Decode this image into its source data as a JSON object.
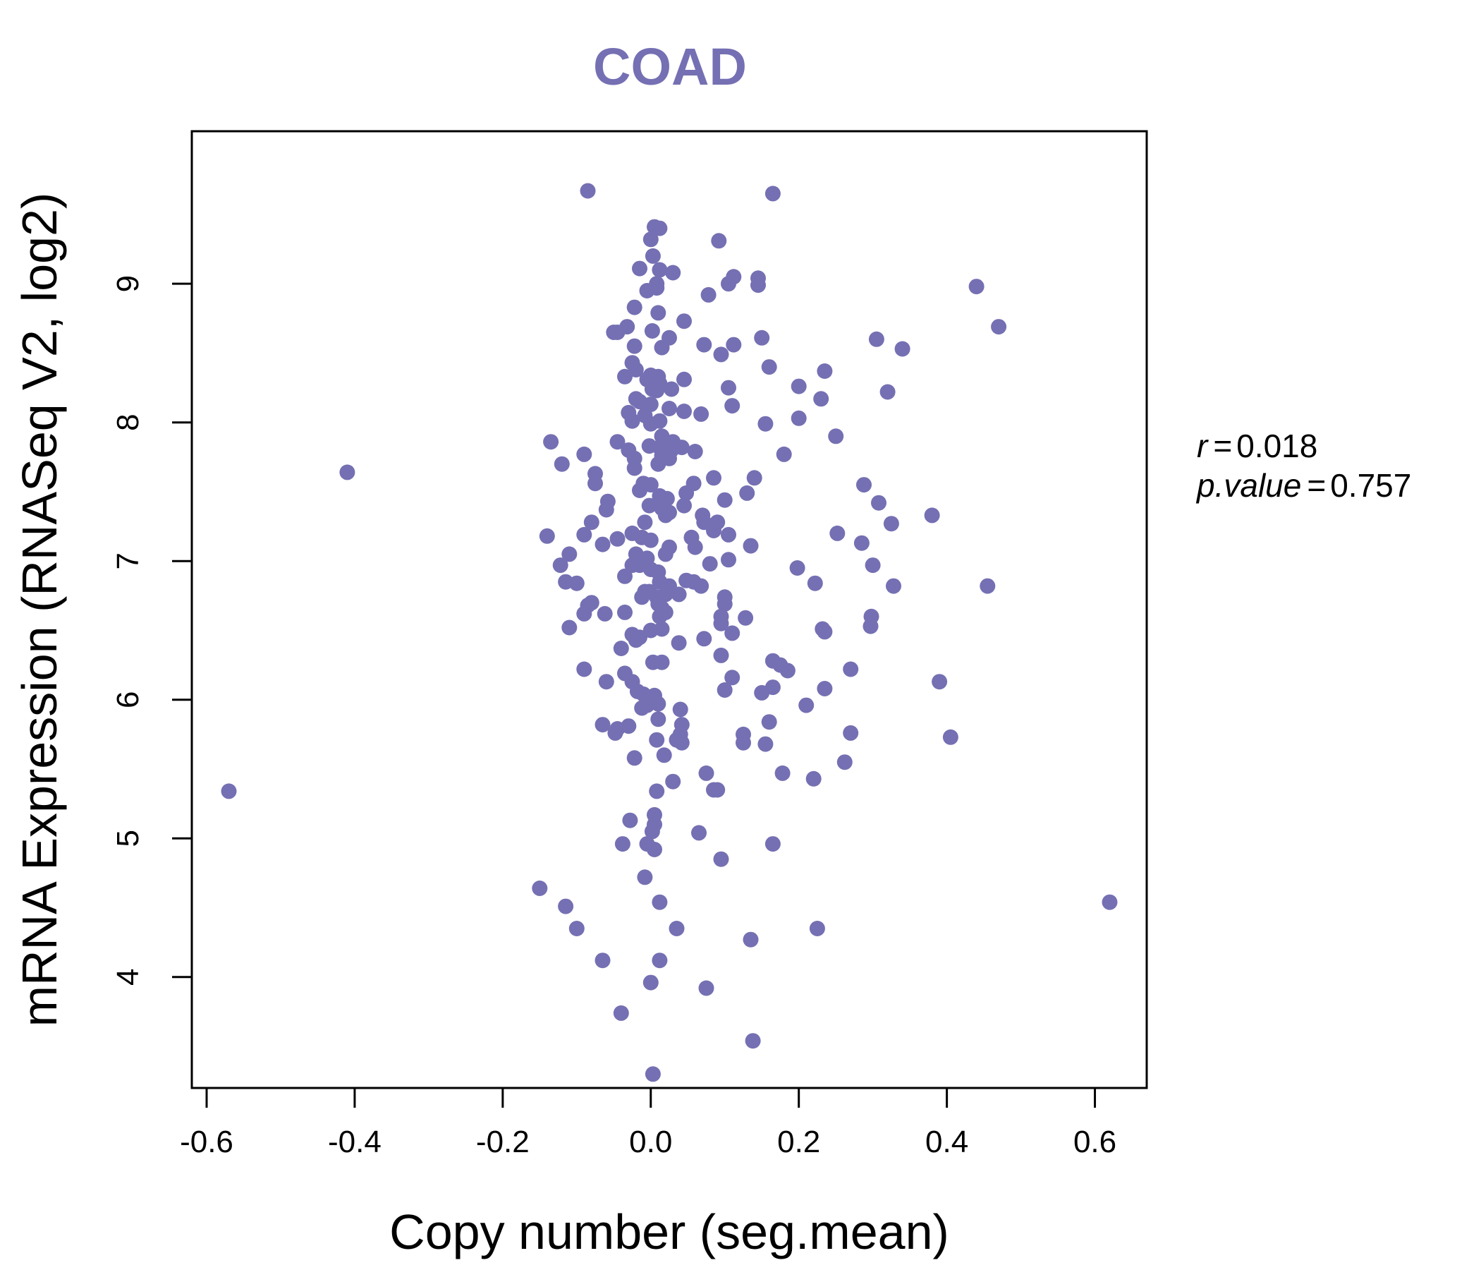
{
  "chart_data": {
    "type": "scatter",
    "title": "COAD",
    "xlabel": "Copy number (seg.mean)",
    "ylabel": "mRNA Expression (RNASeq V2, log2)",
    "xlim": [
      -0.62,
      0.67
    ],
    "ylim": [
      3.2,
      10.1
    ],
    "xticks": [
      -0.6,
      -0.4,
      -0.2,
      0.0,
      0.2,
      0.4,
      0.6
    ],
    "xtick_labels": [
      "-0.6",
      "-0.4",
      "-0.2",
      "0.0",
      "0.2",
      "0.4",
      "0.6"
    ],
    "yticks": [
      4,
      5,
      6,
      7,
      8,
      9
    ],
    "ytick_labels": [
      "4",
      "5",
      "6",
      "7",
      "8",
      "9"
    ],
    "grid": false,
    "color": "#7570b3",
    "stats": {
      "r_label": "r",
      "r_value": "0.018",
      "p_label": "p.value",
      "p_value": "0.757",
      "equals": "="
    },
    "points": [
      [
        -0.57,
        5.34
      ],
      [
        -0.41,
        7.64
      ],
      [
        0.62,
        4.54
      ],
      [
        0.47,
        8.69
      ],
      [
        0.44,
        8.98
      ],
      [
        0.455,
        6.82
      ],
      [
        0.405,
        5.73
      ],
      [
        0.39,
        6.13
      ],
      [
        0.38,
        7.33
      ],
      [
        0.34,
        8.53
      ],
      [
        0.32,
        8.22
      ],
      [
        0.305,
        8.6
      ],
      [
        0.325,
        7.27
      ],
      [
        0.308,
        7.42
      ],
      [
        0.288,
        7.55
      ],
      [
        0.328,
        6.82
      ],
      [
        0.3,
        6.97
      ],
      [
        0.285,
        7.13
      ],
      [
        0.298,
        6.6
      ],
      [
        0.297,
        6.53
      ],
      [
        0.27,
        6.22
      ],
      [
        0.27,
        5.76
      ],
      [
        0.262,
        5.55
      ],
      [
        0.25,
        7.9
      ],
      [
        0.252,
        7.2
      ],
      [
        0.235,
        8.37
      ],
      [
        0.23,
        8.17
      ],
      [
        0.222,
        6.84
      ],
      [
        0.232,
        6.51
      ],
      [
        0.235,
        6.49
      ],
      [
        0.235,
        6.08
      ],
      [
        0.21,
        5.96
      ],
      [
        0.22,
        5.43
      ],
      [
        0.225,
        4.35
      ],
      [
        0.2,
        8.26
      ],
      [
        0.2,
        8.03
      ],
      [
        0.198,
        6.95
      ],
      [
        0.18,
        7.77
      ],
      [
        0.185,
        6.21
      ],
      [
        0.175,
        6.25
      ],
      [
        0.178,
        5.47
      ],
      [
        0.165,
        6.28
      ],
      [
        0.165,
        6.09
      ],
      [
        0.16,
        5.84
      ],
      [
        0.16,
        8.4
      ],
      [
        0.155,
        7.99
      ],
      [
        0.15,
        6.05
      ],
      [
        0.155,
        5.68
      ],
      [
        0.165,
        4.96
      ],
      [
        0.165,
        9.65
      ],
      [
        0.15,
        8.61
      ],
      [
        0.145,
        9.04
      ],
      [
        0.145,
        8.99
      ],
      [
        0.14,
        7.6
      ],
      [
        0.13,
        7.49
      ],
      [
        0.135,
        7.11
      ],
      [
        0.128,
        6.59
      ],
      [
        0.125,
        5.75
      ],
      [
        0.125,
        5.69
      ],
      [
        0.135,
        4.27
      ],
      [
        0.138,
        3.54
      ],
      [
        0.112,
        9.05
      ],
      [
        0.105,
        9.0
      ],
      [
        0.112,
        8.56
      ],
      [
        0.105,
        8.25
      ],
      [
        0.11,
        8.12
      ],
      [
        0.095,
        8.49
      ],
      [
        0.1,
        7.44
      ],
      [
        0.105,
        7.19
      ],
      [
        0.105,
        7.01
      ],
      [
        0.1,
        6.74
      ],
      [
        0.1,
        6.69
      ],
      [
        0.095,
        6.6
      ],
      [
        0.095,
        6.55
      ],
      [
        0.11,
        6.48
      ],
      [
        0.095,
        6.32
      ],
      [
        0.11,
        6.16
      ],
      [
        0.1,
        6.07
      ],
      [
        0.09,
        5.35
      ],
      [
        0.095,
        4.85
      ],
      [
        0.092,
        9.31
      ],
      [
        0.085,
        7.6
      ],
      [
        0.09,
        7.28
      ],
      [
        0.085,
        7.22
      ],
      [
        0.08,
        6.98
      ],
      [
        0.07,
        7.33
      ],
      [
        0.072,
        7.28
      ],
      [
        0.078,
        8.92
      ],
      [
        0.072,
        8.56
      ],
      [
        0.068,
        8.06
      ],
      [
        0.06,
        7.79
      ],
      [
        0.058,
        7.56
      ],
      [
        0.055,
        7.17
      ],
      [
        0.06,
        7.1
      ],
      [
        0.058,
        6.85
      ],
      [
        0.068,
        6.82
      ],
      [
        0.072,
        6.44
      ],
      [
        0.075,
        5.47
      ],
      [
        0.065,
        5.04
      ],
      [
        0.075,
        3.92
      ],
      [
        0.085,
        5.35
      ],
      [
        0.045,
        8.73
      ],
      [
        0.045,
        8.31
      ],
      [
        0.045,
        8.08
      ],
      [
        0.042,
        7.82
      ],
      [
        0.048,
        7.49
      ],
      [
        0.045,
        7.4
      ],
      [
        0.048,
        6.86
      ],
      [
        0.038,
        6.76
      ],
      [
        0.04,
        5.93
      ],
      [
        0.042,
        5.82
      ],
      [
        0.04,
        5.75
      ],
      [
        0.042,
        5.69
      ],
      [
        0.035,
        5.71
      ],
      [
        0.038,
        6.41
      ],
      [
        0.03,
        5.41
      ],
      [
        0.035,
        4.35
      ],
      [
        0.03,
        9.08
      ],
      [
        0.025,
        8.61
      ],
      [
        0.028,
        8.24
      ],
      [
        0.025,
        8.1
      ],
      [
        0.03,
        7.86
      ],
      [
        0.028,
        7.8
      ],
      [
        0.025,
        7.74
      ],
      [
        0.02,
        7.85
      ],
      [
        0.022,
        7.45
      ],
      [
        0.025,
        7.35
      ],
      [
        0.02,
        7.33
      ],
      [
        0.025,
        7.1
      ],
      [
        0.02,
        7.05
      ],
      [
        0.025,
        6.82
      ],
      [
        0.02,
        6.76
      ],
      [
        0.015,
        6.66
      ],
      [
        0.02,
        6.63
      ],
      [
        0.015,
        6.27
      ],
      [
        0.015,
        8.54
      ],
      [
        0.012,
        9.4
      ],
      [
        0.012,
        9.1
      ],
      [
        0.008,
        9.0
      ],
      [
        0.008,
        8.97
      ],
      [
        0.01,
        8.79
      ],
      [
        0.01,
        8.33
      ],
      [
        0.012,
        8.28
      ],
      [
        0.008,
        8.23
      ],
      [
        0.012,
        8.01
      ],
      [
        0.015,
        7.9
      ],
      [
        0.012,
        7.82
      ],
      [
        0.015,
        7.76
      ],
      [
        0.01,
        7.7
      ],
      [
        0.012,
        7.47
      ],
      [
        0.015,
        7.38
      ],
      [
        0.01,
        6.92
      ],
      [
        0.012,
        6.85
      ],
      [
        0.008,
        6.74
      ],
      [
        0.01,
        6.69
      ],
      [
        0.012,
        6.6
      ],
      [
        0.015,
        6.51
      ],
      [
        0.01,
        5.97
      ],
      [
        0.01,
        5.86
      ],
      [
        0.008,
        5.71
      ],
      [
        0.018,
        5.6
      ],
      [
        0.008,
        5.34
      ],
      [
        0.005,
        5.17
      ],
      [
        0.005,
        5.1
      ],
      [
        0.002,
        5.05
      ],
      [
        0.005,
        4.92
      ],
      [
        0.012,
        4.54
      ],
      [
        0.012,
        4.12
      ],
      [
        0.003,
        3.3
      ],
      [
        0.005,
        9.41
      ],
      [
        0.003,
        9.2
      ],
      [
        0.0,
        9.32
      ],
      [
        0.002,
        8.66
      ],
      [
        0.0,
        8.34
      ],
      [
        0.002,
        8.24
      ],
      [
        0.0,
        8.13
      ],
      [
        0.0,
        7.99
      ],
      [
        -0.002,
        7.83
      ],
      [
        0.0,
        7.55
      ],
      [
        -0.002,
        7.4
      ],
      [
        0.0,
        7.15
      ],
      [
        0.0,
        6.94
      ],
      [
        -0.002,
        6.78
      ],
      [
        0.0,
        6.5
      ],
      [
        0.003,
        6.27
      ],
      [
        0.005,
        6.03
      ],
      [
        0.0,
        3.96
      ],
      [
        -0.005,
        8.95
      ],
      [
        -0.005,
        8.31
      ],
      [
        -0.008,
        8.05
      ],
      [
        -0.01,
        7.56
      ],
      [
        -0.008,
        7.28
      ],
      [
        -0.005,
        7.02
      ],
      [
        -0.008,
        6.78
      ],
      [
        -0.01,
        6.04
      ],
      [
        -0.005,
        5.96
      ],
      [
        -0.005,
        4.96
      ],
      [
        -0.008,
        4.72
      ],
      [
        -0.015,
        9.11
      ],
      [
        -0.015,
        8.15
      ],
      [
        -0.015,
        7.51
      ],
      [
        -0.012,
        7.17
      ],
      [
        -0.015,
        6.97
      ],
      [
        -0.012,
        6.74
      ],
      [
        -0.015,
        6.45
      ],
      [
        -0.018,
        6.06
      ],
      [
        -0.012,
        5.94
      ],
      [
        -0.022,
        8.83
      ],
      [
        -0.022,
        8.55
      ],
      [
        -0.025,
        8.43
      ],
      [
        -0.02,
        8.38
      ],
      [
        -0.02,
        8.17
      ],
      [
        -0.025,
        8.01
      ],
      [
        -0.022,
        7.74
      ],
      [
        -0.022,
        7.67
      ],
      [
        -0.025,
        7.2
      ],
      [
        -0.02,
        7.05
      ],
      [
        -0.025,
        6.97
      ],
      [
        -0.025,
        6.47
      ],
      [
        -0.02,
        6.43
      ],
      [
        -0.025,
        6.13
      ],
      [
        -0.022,
        5.58
      ],
      [
        -0.028,
        5.13
      ],
      [
        -0.032,
        8.69
      ],
      [
        -0.035,
        8.33
      ],
      [
        -0.03,
        8.07
      ],
      [
        -0.03,
        7.8
      ],
      [
        -0.035,
        6.89
      ],
      [
        -0.035,
        6.63
      ],
      [
        -0.035,
        6.19
      ],
      [
        -0.03,
        5.81
      ],
      [
        -0.04,
        6.37
      ],
      [
        -0.038,
        4.96
      ],
      [
        -0.04,
        3.74
      ],
      [
        -0.045,
        8.65
      ],
      [
        -0.045,
        7.86
      ],
      [
        -0.045,
        7.16
      ],
      [
        -0.045,
        5.79
      ],
      [
        -0.048,
        5.76
      ],
      [
        -0.05,
        8.65
      ],
      [
        -0.058,
        7.43
      ],
      [
        -0.06,
        7.37
      ],
      [
        -0.065,
        7.12
      ],
      [
        -0.062,
        6.62
      ],
      [
        -0.06,
        6.13
      ],
      [
        -0.065,
        5.82
      ],
      [
        -0.065,
        4.12
      ],
      [
        -0.075,
        7.63
      ],
      [
        -0.075,
        7.56
      ],
      [
        -0.08,
        7.28
      ],
      [
        -0.08,
        6.7
      ],
      [
        -0.085,
        6.68
      ],
      [
        -0.09,
        6.22
      ],
      [
        -0.085,
        9.67
      ],
      [
        -0.09,
        7.77
      ],
      [
        -0.09,
        7.19
      ],
      [
        -0.09,
        6.62
      ],
      [
        -0.1,
        6.84
      ],
      [
        -0.11,
        7.05
      ],
      [
        -0.11,
        6.52
      ],
      [
        -0.1,
        4.35
      ],
      [
        -0.115,
        6.85
      ],
      [
        -0.12,
        7.7
      ],
      [
        -0.122,
        6.97
      ],
      [
        -0.135,
        7.86
      ],
      [
        -0.14,
        7.18
      ],
      [
        -0.115,
        4.51
      ],
      [
        -0.15,
        4.64
      ]
    ]
  }
}
